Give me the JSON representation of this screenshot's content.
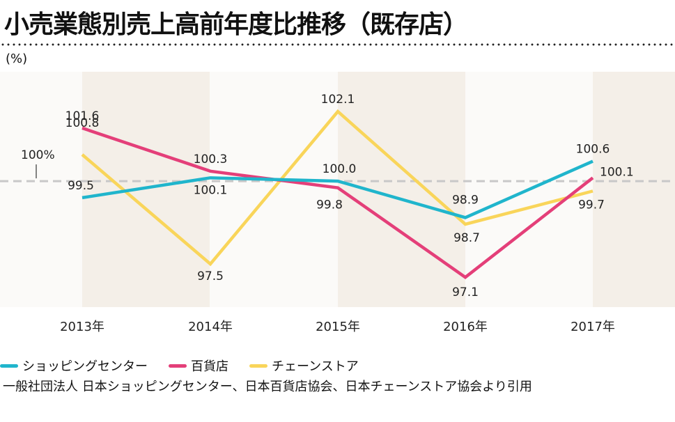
{
  "title": "小売業態別売上高前年度比推移（既存店）",
  "unit_label": "(%)",
  "source": "一般社団法人 日本ショッピングセンター、日本百貨店協会、日本チェーンストア協会より引用",
  "colors": {
    "shopping_center": "#20b5cc",
    "department_store": "#e43f79",
    "chain_store": "#f9d55a",
    "band": "#f4efe8",
    "baseline": "#c8c8c8"
  },
  "chart_data": {
    "type": "line",
    "title": "小売業態別売上高前年度比推移（既存店）",
    "ylabel": "(%)",
    "xlabel": "",
    "categories": [
      "2013年",
      "2014年",
      "2015年",
      "2016年",
      "2017年"
    ],
    "ylim": [
      96.2,
      103.3
    ],
    "reference_line": {
      "value": 100,
      "label": "100%"
    },
    "series": [
      {
        "name": "ショッピングセンター",
        "color": "#20b5cc",
        "values": [
          99.5,
          100.1,
          100.0,
          98.9,
          100.6
        ]
      },
      {
        "name": "百貨店",
        "color": "#e43f79",
        "values": [
          101.6,
          100.3,
          99.8,
          97.1,
          100.1
        ]
      },
      {
        "name": "チェーンストア",
        "color": "#f9d55a",
        "values": [
          100.8,
          97.5,
          102.1,
          98.7,
          99.7
        ]
      }
    ],
    "data_labels": [
      [
        "99.5",
        "100.1",
        "100.0",
        "98.9",
        "100.6"
      ],
      [
        "101.6",
        "100.3",
        "99.8",
        "97.1",
        "100.1"
      ],
      [
        "100.8",
        "97.5",
        "102.1",
        "98.7",
        "99.7"
      ]
    ]
  },
  "legend": [
    {
      "label": "ショッピングセンター",
      "color": "#20b5cc"
    },
    {
      "label": "百貨店",
      "color": "#e43f79"
    },
    {
      "label": "チェーンストア",
      "color": "#f9d55a"
    }
  ]
}
